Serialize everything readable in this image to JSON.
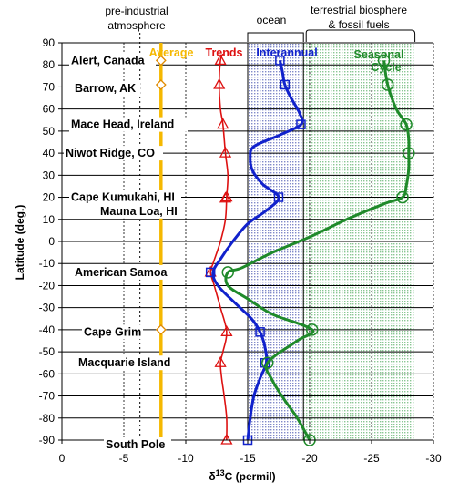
{
  "header": {
    "preindustrial_line1": "pre-industrial",
    "preindustrial_line2": "atmosphere",
    "ocean": "ocean",
    "terrestrial_line1": "terrestrial biosphere",
    "terrestrial_line2": "& fossil fuels"
  },
  "colors": {
    "average": "#f5b800",
    "average_marker": "#e08a00",
    "trends": "#dd1111",
    "interannual": "#1122cc",
    "seasonal": "#1f8a2a",
    "ocean_band": "#1a2a9c",
    "terrestrial_band": "#2a9a3a",
    "grid": "#000000"
  },
  "chart_data": {
    "type": "line",
    "xlabel_prefix": "δ",
    "xlabel_sup": "13",
    "xlabel_suffix": "C (permil)",
    "ylabel": "Latitude (deg.)",
    "xlim": [
      0,
      -30
    ],
    "ylim": [
      -90,
      90
    ],
    "x_ticks": [
      "0",
      "-5",
      "-10",
      "-15",
      "-20",
      "-25",
      "-30"
    ],
    "x_tick_values": [
      0,
      -5,
      -10,
      -15,
      -20,
      -25,
      -30
    ],
    "y_ticks": [
      "90",
      "80",
      "70",
      "60",
      "50",
      "40",
      "30",
      "20",
      "10",
      "0",
      "-10",
      "-20",
      "-30",
      "-40",
      "-50",
      "-60",
      "-70",
      "-80",
      "-90"
    ],
    "y_tick_values": [
      90,
      80,
      70,
      60,
      50,
      40,
      30,
      20,
      10,
      0,
      -10,
      -20,
      -30,
      -40,
      -50,
      -60,
      -70,
      -80,
      -90
    ],
    "preindustrial_x": -6.3,
    "bands": [
      {
        "name": "ocean",
        "from": -15,
        "to": -19.5
      },
      {
        "name": "terrestrial",
        "from": -19.5,
        "to": -28.5
      }
    ],
    "sites": [
      {
        "name": "Alert, Canada",
        "lat": 82
      },
      {
        "name": "Barrow, AK",
        "lat": 71
      },
      {
        "name": "Mace Head, Ireland",
        "lat": 53
      },
      {
        "name": "Niwot Ridge, CO",
        "lat": 40
      },
      {
        "name": "Cape Kumukahi, HI",
        "lat": 20
      },
      {
        "name": "Mauna Loa, HI",
        "lat": 19.5
      },
      {
        "name": "American Samoa",
        "lat": -14
      },
      {
        "name": "Cape Grim",
        "lat": -41
      },
      {
        "name": "Macquarie Island",
        "lat": -55
      },
      {
        "name": "South Pole",
        "lat": -90
      }
    ],
    "series": [
      {
        "name": "Average",
        "color": "#f5b800",
        "marker": "diamond",
        "line": [
          [
            -8,
            90
          ],
          [
            -8,
            -90
          ]
        ],
        "points": [
          [
            -8,
            82
          ],
          [
            -8,
            71
          ],
          [
            -8,
            -40
          ]
        ]
      },
      {
        "name": "Trends",
        "color": "#dd1111",
        "marker": "triangle",
        "line": [
          [
            -13,
            85
          ],
          [
            -12.8,
            82
          ],
          [
            -12.7,
            71
          ],
          [
            -12.8,
            60
          ],
          [
            -13,
            53
          ],
          [
            -13.2,
            40
          ],
          [
            -13.4,
            30
          ],
          [
            -13.3,
            20
          ],
          [
            -13.2,
            10
          ],
          [
            -12.8,
            0
          ],
          [
            -12.2,
            -10
          ],
          [
            -12,
            -14
          ],
          [
            -12.3,
            -20
          ],
          [
            -12.8,
            -30
          ],
          [
            -13.3,
            -41
          ],
          [
            -13,
            -50
          ],
          [
            -12.8,
            -55
          ],
          [
            -12.9,
            -62
          ],
          [
            -13.1,
            -70
          ],
          [
            -13.3,
            -80
          ],
          [
            -13.3,
            -90
          ]
        ],
        "points": [
          [
            -12.8,
            82
          ],
          [
            -12.7,
            71
          ],
          [
            -13,
            53
          ],
          [
            -13.2,
            40
          ],
          [
            -13.3,
            20
          ],
          [
            -13.2,
            19.5
          ],
          [
            -12,
            -14
          ],
          [
            -13.3,
            -41
          ],
          [
            -12.8,
            -55
          ],
          [
            -13.3,
            -90
          ]
        ]
      },
      {
        "name": "Interannual",
        "color": "#1122cc",
        "marker": "square",
        "line": [
          [
            -17.6,
            82
          ],
          [
            -17.8,
            77
          ],
          [
            -18,
            71
          ],
          [
            -18.5,
            65
          ],
          [
            -19.2,
            58
          ],
          [
            -19.3,
            53
          ],
          [
            -17.5,
            48
          ],
          [
            -15.5,
            43
          ],
          [
            -15.2,
            38
          ],
          [
            -15.4,
            32
          ],
          [
            -16.2,
            26
          ],
          [
            -17.5,
            20
          ],
          [
            -16.5,
            14
          ],
          [
            -15,
            8
          ],
          [
            -13.8,
            0
          ],
          [
            -12.8,
            -8
          ],
          [
            -12.2,
            -14
          ],
          [
            -12.6,
            -20
          ],
          [
            -14,
            -28
          ],
          [
            -15.3,
            -35
          ],
          [
            -16,
            -41
          ],
          [
            -16.4,
            -48
          ],
          [
            -16.5,
            -55
          ],
          [
            -16,
            -62
          ],
          [
            -15.5,
            -70
          ],
          [
            -15.2,
            -80
          ],
          [
            -15,
            -90
          ]
        ],
        "points": [
          [
            -17.6,
            82
          ],
          [
            -18,
            71
          ],
          [
            -19.3,
            53
          ],
          [
            -17.5,
            20
          ],
          [
            -12,
            -14
          ],
          [
            -16,
            -41
          ],
          [
            -16.4,
            -55
          ],
          [
            -15,
            -90
          ]
        ]
      },
      {
        "name": "Seasonal Cycle",
        "color": "#1f8a2a",
        "marker": "circle",
        "line": [
          [
            -26,
            82
          ],
          [
            -26.3,
            71
          ],
          [
            -27,
            60
          ],
          [
            -27.8,
            53
          ],
          [
            -28,
            46
          ],
          [
            -28,
            40
          ],
          [
            -28,
            33
          ],
          [
            -27.8,
            25
          ],
          [
            -27.5,
            20
          ],
          [
            -26,
            17
          ],
          [
            -23,
            10
          ],
          [
            -20,
            2
          ],
          [
            -17,
            -5
          ],
          [
            -14.5,
            -12
          ],
          [
            -13.4,
            -14
          ],
          [
            -13.4,
            -20
          ],
          [
            -15,
            -26
          ],
          [
            -17,
            -33
          ],
          [
            -20.2,
            -40
          ],
          [
            -19,
            -45
          ],
          [
            -16.6,
            -55
          ],
          [
            -17,
            -63
          ],
          [
            -18,
            -72
          ],
          [
            -19,
            -80
          ],
          [
            -20,
            -90
          ]
        ],
        "points": [
          [
            -26,
            82
          ],
          [
            -26.3,
            71
          ],
          [
            -27.8,
            53
          ],
          [
            -28,
            40
          ],
          [
            -27.5,
            20
          ],
          [
            -13.4,
            -14
          ],
          [
            -20.2,
            -40
          ],
          [
            -16.6,
            -55
          ],
          [
            -20,
            -90
          ]
        ]
      }
    ],
    "legend_labels": {
      "average": "Average",
      "trends": "Trends",
      "interannual": "Interannual",
      "seasonal_line1": "Seasonal",
      "seasonal_line2": "Cycle"
    }
  }
}
